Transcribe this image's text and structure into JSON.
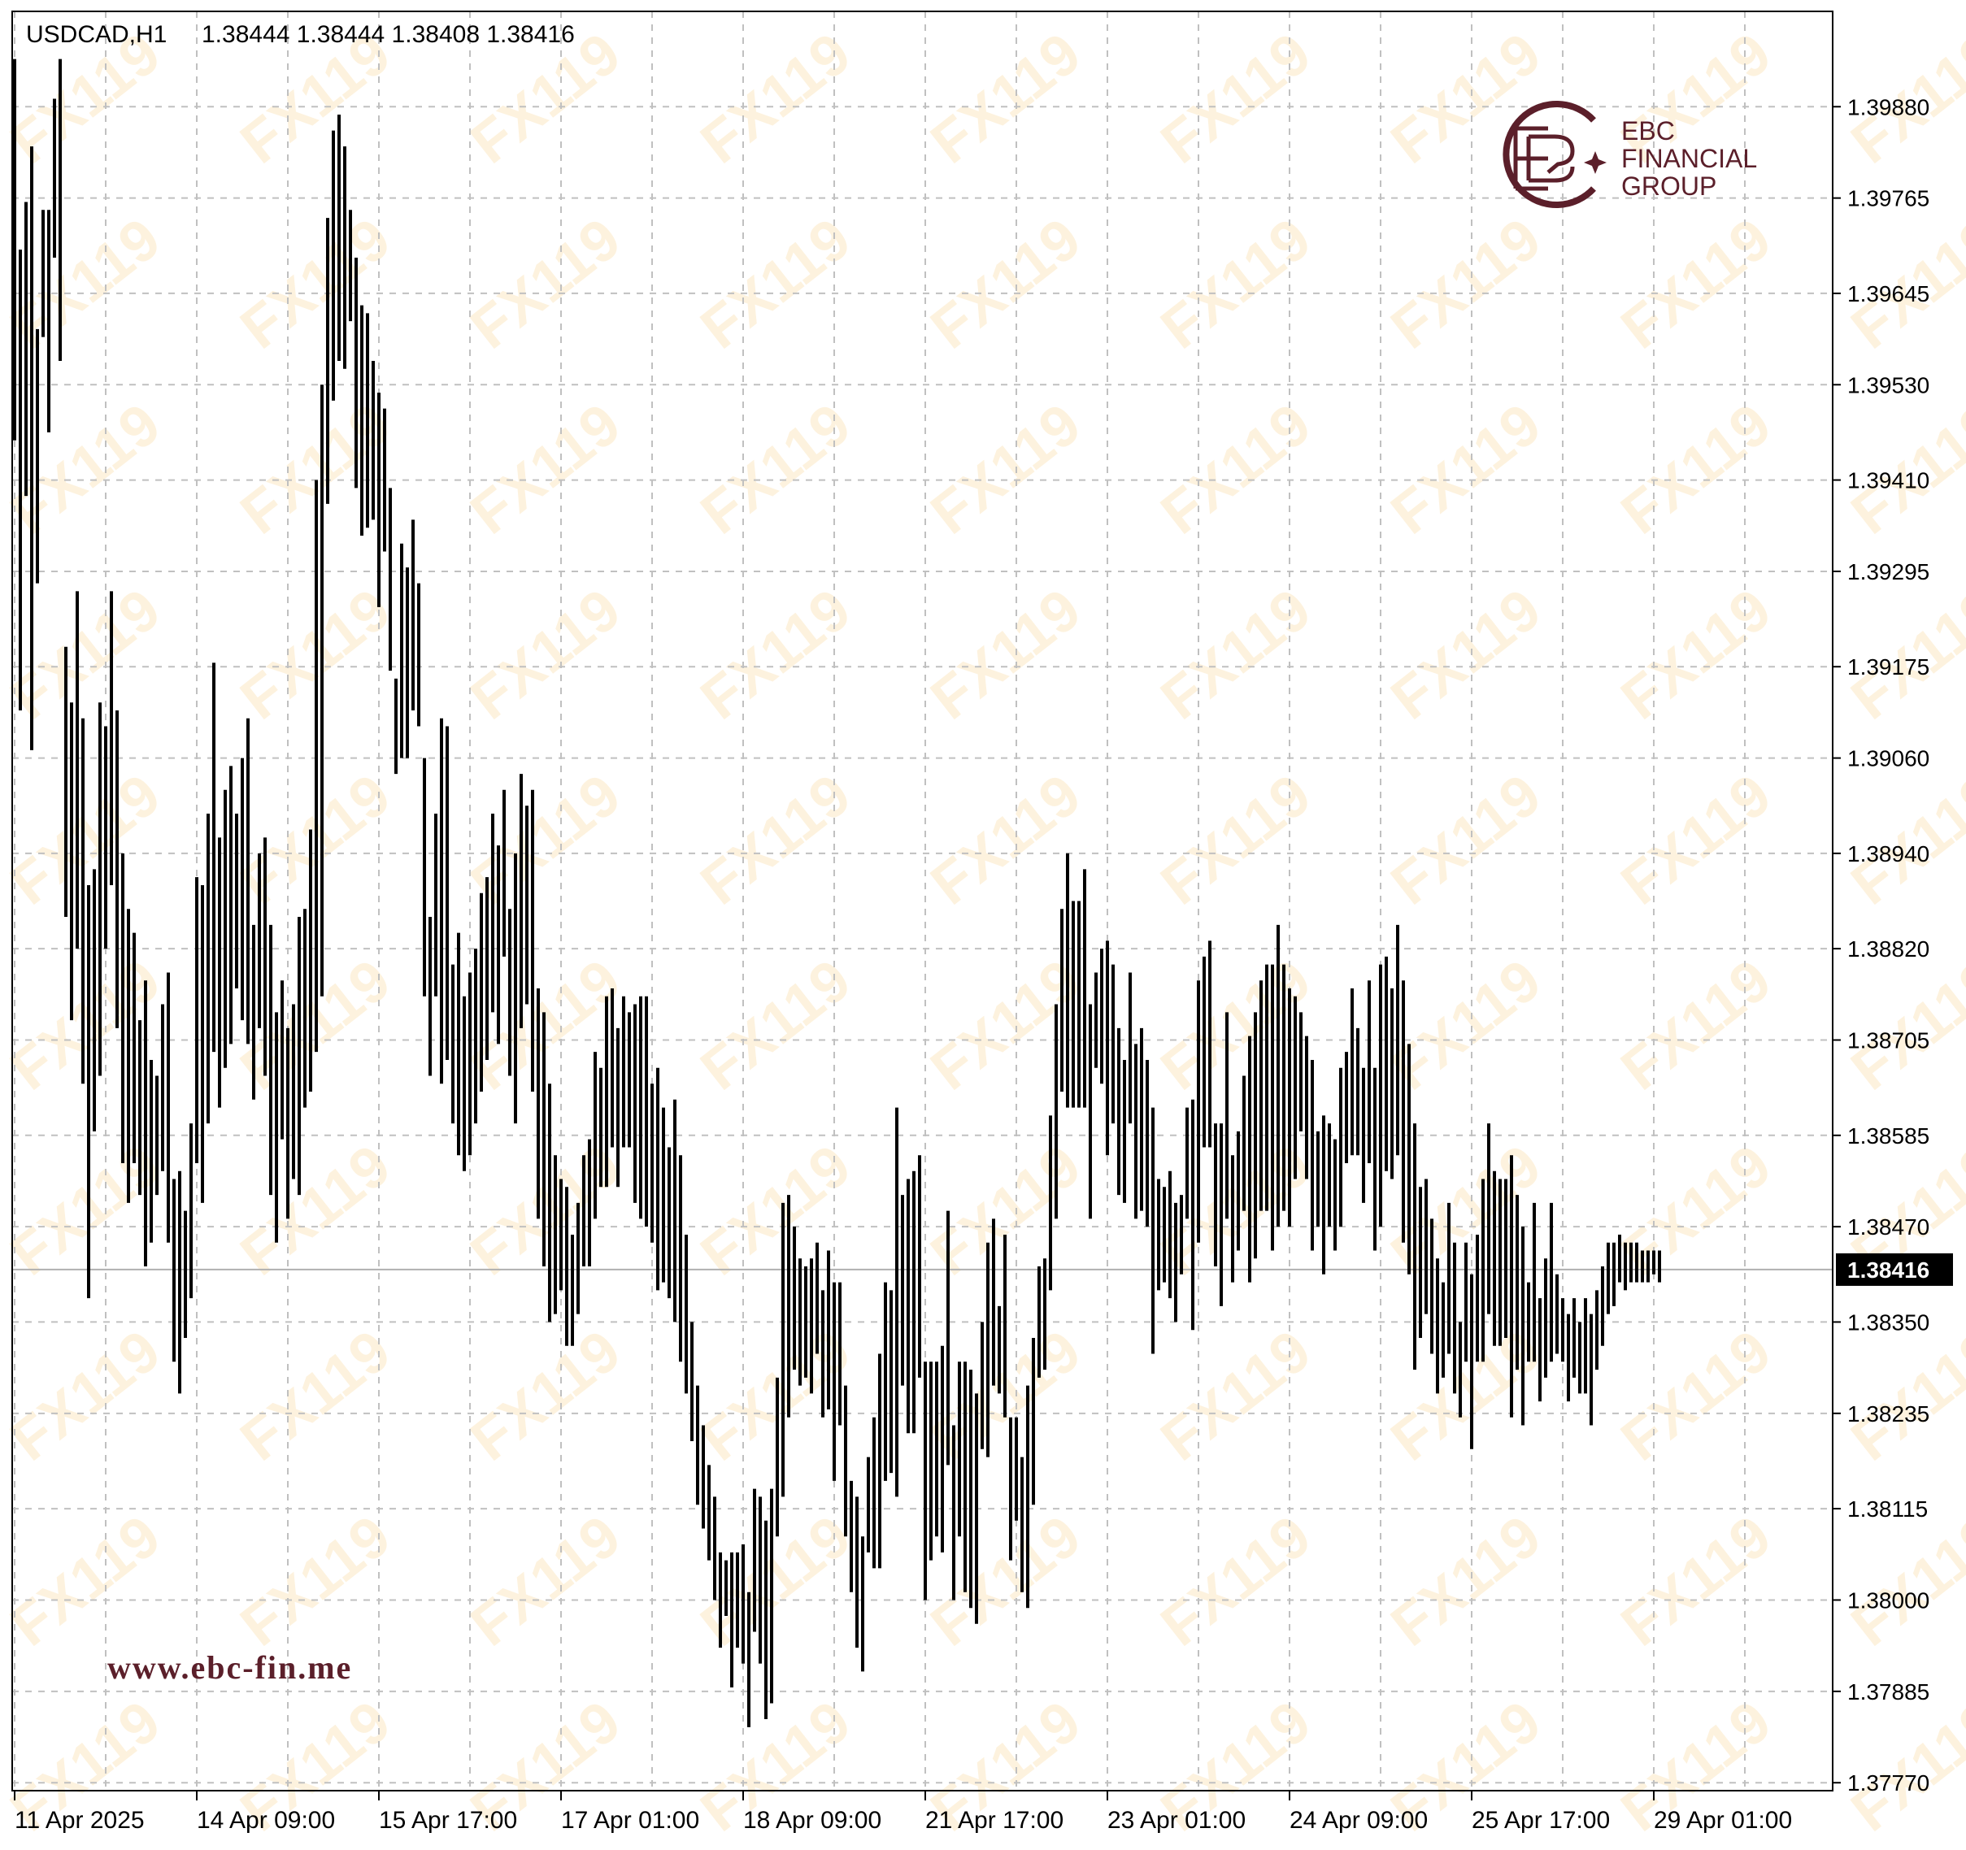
{
  "header": {
    "symbol": "USDCAD,H1",
    "ohlc": "1.38444 1.38444 1.38408 1.38416"
  },
  "logo": {
    "line1": "EBC",
    "line2": "FINANCIAL",
    "line3": "GROUP",
    "color": "#5b1f2a"
  },
  "website": "www.ebc-fin.me",
  "watermark": "FX119",
  "last_price_label": "1.38416",
  "chart_data": {
    "type": "ohlc-bar",
    "title": "",
    "symbol": "USDCAD",
    "timeframe": "H1",
    "y_ticks": [
      "1.39880",
      "1.39765",
      "1.39645",
      "1.39530",
      "1.39410",
      "1.39295",
      "1.39175",
      "1.39060",
      "1.38940",
      "1.38820",
      "1.38705",
      "1.38585",
      "1.38470",
      "1.38350",
      "1.38235",
      "1.38115",
      "1.38000",
      "1.37885",
      "1.37770"
    ],
    "x_ticks": [
      {
        "label": "11 Apr 2025",
        "index": 0
      },
      {
        "label": "14 Apr 09:00",
        "index": 32
      },
      {
        "label": "15 Apr 17:00",
        "index": 64
      },
      {
        "label": "17 Apr 01:00",
        "index": 96
      },
      {
        "label": "18 Apr 09:00",
        "index": 128
      },
      {
        "label": "21 Apr 17:00",
        "index": 160
      },
      {
        "label": "23 Apr 01:00",
        "index": 192
      },
      {
        "label": "24 Apr 09:00",
        "index": 224
      },
      {
        "label": "25 Apr 17:00",
        "index": 256
      },
      {
        "label": "29 Apr 01:00",
        "index": 288
      }
    ],
    "ylim": [
      1.3776,
      1.4
    ],
    "last_price": 1.38416,
    "grid": true,
    "bar_ranges": [
      [
        1.3946,
        1.3994
      ],
      [
        1.3912,
        1.397
      ],
      [
        1.3939,
        1.3976
      ],
      [
        1.3907,
        1.3983
      ],
      [
        1.3928,
        1.396
      ],
      [
        1.3959,
        1.3975
      ],
      [
        1.3947,
        1.3975
      ],
      [
        1.3969,
        1.3989
      ],
      [
        1.3956,
        1.3994
      ],
      [
        1.3886,
        1.392
      ],
      [
        1.3873,
        1.3913
      ],
      [
        1.3882,
        1.3927
      ],
      [
        1.3865,
        1.3911
      ],
      [
        1.3838,
        1.389
      ],
      [
        1.3859,
        1.3892
      ],
      [
        1.3866,
        1.3913
      ],
      [
        1.3882,
        1.391
      ],
      [
        1.389,
        1.3927
      ],
      [
        1.3872,
        1.3912
      ],
      [
        1.3855,
        1.3894
      ],
      [
        1.385,
        1.3887
      ],
      [
        1.3855,
        1.3884
      ],
      [
        1.3851,
        1.3873
      ],
      [
        1.3842,
        1.3878
      ],
      [
        1.3845,
        1.3868
      ],
      [
        1.3851,
        1.3866
      ],
      [
        1.3854,
        1.3875
      ],
      [
        1.3845,
        1.3879
      ],
      [
        1.383,
        1.3853
      ],
      [
        1.3826,
        1.3854
      ],
      [
        1.3833,
        1.3849
      ],
      [
        1.3838,
        1.386
      ],
      [
        1.3855,
        1.3891
      ],
      [
        1.385,
        1.389
      ],
      [
        1.386,
        1.3899
      ],
      [
        1.3869,
        1.3918
      ],
      [
        1.3862,
        1.3896
      ],
      [
        1.3867,
        1.3902
      ],
      [
        1.387,
        1.3905
      ],
      [
        1.3877,
        1.3899
      ],
      [
        1.3873,
        1.3906
      ],
      [
        1.387,
        1.3911
      ],
      [
        1.3863,
        1.3885
      ],
      [
        1.3872,
        1.3894
      ],
      [
        1.3866,
        1.3896
      ],
      [
        1.3851,
        1.3885
      ],
      [
        1.3845,
        1.3874
      ],
      [
        1.3858,
        1.3878
      ],
      [
        1.3848,
        1.3872
      ],
      [
        1.3853,
        1.3875
      ],
      [
        1.3851,
        1.3886
      ],
      [
        1.3862,
        1.3887
      ],
      [
        1.3864,
        1.3897
      ],
      [
        1.3869,
        1.3941
      ],
      [
        1.3876,
        1.3953
      ],
      [
        1.3938,
        1.3974
      ],
      [
        1.3951,
        1.3985
      ],
      [
        1.3956,
        1.3987
      ],
      [
        1.3955,
        1.3983
      ],
      [
        1.3961,
        1.3975
      ],
      [
        1.394,
        1.3969
      ],
      [
        1.3934,
        1.3963
      ],
      [
        1.3935,
        1.3962
      ],
      [
        1.3936,
        1.3956
      ],
      [
        1.3925,
        1.3952
      ],
      [
        1.3932,
        1.395
      ],
      [
        1.3917,
        1.394
      ],
      [
        1.3904,
        1.3916
      ],
      [
        1.3906,
        1.3933
      ],
      [
        1.3906,
        1.393
      ],
      [
        1.3912,
        1.3936
      ],
      [
        1.391,
        1.3928
      ],
      [
        1.3876,
        1.3906
      ],
      [
        1.3866,
        1.3886
      ],
      [
        1.3876,
        1.3899
      ],
      [
        1.3865,
        1.3911
      ],
      [
        1.3868,
        1.391
      ],
      [
        1.386,
        1.388
      ],
      [
        1.3856,
        1.3884
      ],
      [
        1.3854,
        1.3876
      ],
      [
        1.3856,
        1.3879
      ],
      [
        1.386,
        1.3882
      ],
      [
        1.3864,
        1.3889
      ],
      [
        1.3868,
        1.3891
      ],
      [
        1.3874,
        1.3899
      ],
      [
        1.387,
        1.3895
      ],
      [
        1.3881,
        1.3902
      ],
      [
        1.3866,
        1.3887
      ],
      [
        1.386,
        1.3894
      ],
      [
        1.3872,
        1.3904
      ],
      [
        1.3875,
        1.39
      ],
      [
        1.3864,
        1.3902
      ],
      [
        1.3848,
        1.3877
      ],
      [
        1.3842,
        1.3874
      ],
      [
        1.3835,
        1.3865
      ],
      [
        1.3836,
        1.3856
      ],
      [
        1.3839,
        1.3853
      ],
      [
        1.3832,
        1.3852
      ],
      [
        1.3832,
        1.3846
      ],
      [
        1.3836,
        1.385
      ],
      [
        1.3842,
        1.3856
      ],
      [
        1.3842,
        1.3858
      ],
      [
        1.3848,
        1.3869
      ],
      [
        1.3852,
        1.3867
      ],
      [
        1.3852,
        1.3876
      ],
      [
        1.3857,
        1.3877
      ],
      [
        1.3852,
        1.3872
      ],
      [
        1.3857,
        1.3876
      ],
      [
        1.3857,
        1.3874
      ],
      [
        1.385,
        1.3875
      ],
      [
        1.3848,
        1.3876
      ],
      [
        1.3847,
        1.3876
      ],
      [
        1.3845,
        1.3865
      ],
      [
        1.3839,
        1.3867
      ],
      [
        1.384,
        1.3862
      ],
      [
        1.3838,
        1.3857
      ],
      [
        1.3835,
        1.3863
      ],
      [
        1.383,
        1.3856
      ],
      [
        1.3826,
        1.3846
      ],
      [
        1.382,
        1.3835
      ],
      [
        1.3812,
        1.3827
      ],
      [
        1.3809,
        1.3822
      ],
      [
        1.3805,
        1.3817
      ],
      [
        1.38,
        1.3813
      ],
      [
        1.3794,
        1.3806
      ],
      [
        1.3798,
        1.3805
      ],
      [
        1.3789,
        1.3806
      ],
      [
        1.3794,
        1.3806
      ],
      [
        1.3792,
        1.3807
      ],
      [
        1.3784,
        1.3801
      ],
      [
        1.3796,
        1.3814
      ],
      [
        1.3792,
        1.3813
      ],
      [
        1.3785,
        1.381
      ],
      [
        1.3787,
        1.3814
      ],
      [
        1.3808,
        1.3828
      ],
      [
        1.3813,
        1.385
      ],
      [
        1.3823,
        1.3851
      ],
      [
        1.3829,
        1.3847
      ],
      [
        1.3827,
        1.3843
      ],
      [
        1.3828,
        1.3842
      ],
      [
        1.3826,
        1.3843
      ],
      [
        1.3831,
        1.3845
      ],
      [
        1.3823,
        1.3839
      ],
      [
        1.3824,
        1.3844
      ],
      [
        1.3815,
        1.384
      ],
      [
        1.3822,
        1.384
      ],
      [
        1.3808,
        1.3827
      ],
      [
        1.3801,
        1.3815
      ],
      [
        1.3794,
        1.3813
      ],
      [
        1.3791,
        1.3808
      ],
      [
        1.3806,
        1.3818
      ],
      [
        1.3804,
        1.3823
      ],
      [
        1.3804,
        1.3831
      ],
      [
        1.3815,
        1.384
      ],
      [
        1.3816,
        1.3839
      ],
      [
        1.3813,
        1.3862
      ],
      [
        1.3827,
        1.3851
      ],
      [
        1.3821,
        1.3853
      ],
      [
        1.3821,
        1.3854
      ],
      [
        1.3828,
        1.3856
      ],
      [
        1.38,
        1.383
      ],
      [
        1.3805,
        1.383
      ],
      [
        1.3808,
        1.383
      ],
      [
        1.3806,
        1.3832
      ],
      [
        1.3817,
        1.3849
      ],
      [
        1.38,
        1.3822
      ],
      [
        1.3808,
        1.383
      ],
      [
        1.3801,
        1.383
      ],
      [
        1.3799,
        1.3829
      ],
      [
        1.3797,
        1.3826
      ],
      [
        1.3819,
        1.3835
      ],
      [
        1.3818,
        1.3845
      ],
      [
        1.3827,
        1.3848
      ],
      [
        1.3826,
        1.3837
      ],
      [
        1.3823,
        1.3846
      ],
      [
        1.3805,
        1.3823
      ],
      [
        1.381,
        1.3823
      ],
      [
        1.3801,
        1.3818
      ],
      [
        1.3799,
        1.3827
      ],
      [
        1.3812,
        1.3833
      ],
      [
        1.3828,
        1.3842
      ],
      [
        1.3829,
        1.3843
      ],
      [
        1.3839,
        1.3861
      ],
      [
        1.3848,
        1.3875
      ],
      [
        1.3864,
        1.3887
      ],
      [
        1.3862,
        1.3894
      ],
      [
        1.3862,
        1.3888
      ],
      [
        1.3862,
        1.3888
      ],
      [
        1.3862,
        1.3892
      ],
      [
        1.3848,
        1.3875
      ],
      [
        1.3867,
        1.3879
      ],
      [
        1.3865,
        1.3882
      ],
      [
        1.3856,
        1.3883
      ],
      [
        1.386,
        1.388
      ],
      [
        1.3851,
        1.3872
      ],
      [
        1.385,
        1.3868
      ],
      [
        1.386,
        1.3879
      ],
      [
        1.3848,
        1.387
      ],
      [
        1.3849,
        1.3872
      ],
      [
        1.3847,
        1.3868
      ],
      [
        1.3831,
        1.3862
      ],
      [
        1.3839,
        1.3853
      ],
      [
        1.384,
        1.3852
      ],
      [
        1.3838,
        1.3854
      ],
      [
        1.3835,
        1.385
      ],
      [
        1.3841,
        1.3851
      ],
      [
        1.3848,
        1.3862
      ],
      [
        1.3834,
        1.3863
      ],
      [
        1.3845,
        1.3878
      ],
      [
        1.3857,
        1.3881
      ],
      [
        1.3857,
        1.3883
      ],
      [
        1.3842,
        1.386
      ],
      [
        1.3837,
        1.386
      ],
      [
        1.3848,
        1.3874
      ],
      [
        1.384,
        1.3856
      ],
      [
        1.3844,
        1.3859
      ],
      [
        1.3849,
        1.3866
      ],
      [
        1.384,
        1.3871
      ],
      [
        1.3843,
        1.3874
      ],
      [
        1.3849,
        1.3878
      ],
      [
        1.3849,
        1.388
      ],
      [
        1.3844,
        1.388
      ],
      [
        1.3847,
        1.3885
      ],
      [
        1.3849,
        1.388
      ],
      [
        1.3847,
        1.3877
      ],
      [
        1.3853,
        1.3876
      ],
      [
        1.3859,
        1.3874
      ],
      [
        1.3853,
        1.3871
      ],
      [
        1.3844,
        1.3868
      ],
      [
        1.3847,
        1.3859
      ],
      [
        1.3841,
        1.3861
      ],
      [
        1.3847,
        1.386
      ],
      [
        1.3844,
        1.3858
      ],
      [
        1.3847,
        1.3867
      ],
      [
        1.3855,
        1.3869
      ],
      [
        1.3856,
        1.3877
      ],
      [
        1.3856,
        1.3872
      ],
      [
        1.385,
        1.3867
      ],
      [
        1.3855,
        1.3878
      ],
      [
        1.3844,
        1.3867
      ],
      [
        1.3847,
        1.388
      ],
      [
        1.3854,
        1.3881
      ],
      [
        1.3853,
        1.3877
      ],
      [
        1.3856,
        1.3885
      ],
      [
        1.3845,
        1.3878
      ],
      [
        1.3841,
        1.387
      ],
      [
        1.3829,
        1.386
      ],
      [
        1.3833,
        1.3852
      ],
      [
        1.3836,
        1.3853
      ],
      [
        1.3831,
        1.3848
      ],
      [
        1.3826,
        1.3843
      ],
      [
        1.3828,
        1.384
      ],
      [
        1.3831,
        1.385
      ],
      [
        1.3826,
        1.3845
      ],
      [
        1.3823,
        1.3835
      ],
      [
        1.383,
        1.3845
      ],
      [
        1.3819,
        1.3841
      ],
      [
        1.383,
        1.3846
      ],
      [
        1.383,
        1.3853
      ],
      [
        1.3836,
        1.386
      ],
      [
        1.3832,
        1.3854
      ],
      [
        1.3832,
        1.3853
      ],
      [
        1.3833,
        1.3853
      ],
      [
        1.3823,
        1.3856
      ],
      [
        1.3829,
        1.3851
      ],
      [
        1.3822,
        1.3847
      ],
      [
        1.383,
        1.384
      ],
      [
        1.383,
        1.385
      ],
      [
        1.3825,
        1.3838
      ],
      [
        1.3828,
        1.3843
      ],
      [
        1.383,
        1.385
      ],
      [
        1.3831,
        1.3841
      ],
      [
        1.383,
        1.3838
      ],
      [
        1.3825,
        1.3836
      ],
      [
        1.3828,
        1.3838
      ],
      [
        1.3826,
        1.3835
      ],
      [
        1.3826,
        1.3838
      ],
      [
        1.3822,
        1.3836
      ],
      [
        1.3829,
        1.3839
      ],
      [
        1.3832,
        1.3842
      ],
      [
        1.3836,
        1.3845
      ],
      [
        1.3837,
        1.3845
      ],
      [
        1.384,
        1.3846
      ],
      [
        1.3839,
        1.3845
      ],
      [
        1.384,
        1.3845
      ],
      [
        1.384,
        1.3845
      ],
      [
        1.384,
        1.3844
      ],
      [
        1.384,
        1.3844
      ],
      [
        1.3841,
        1.3844
      ],
      [
        1.384,
        1.3844
      ]
    ]
  }
}
